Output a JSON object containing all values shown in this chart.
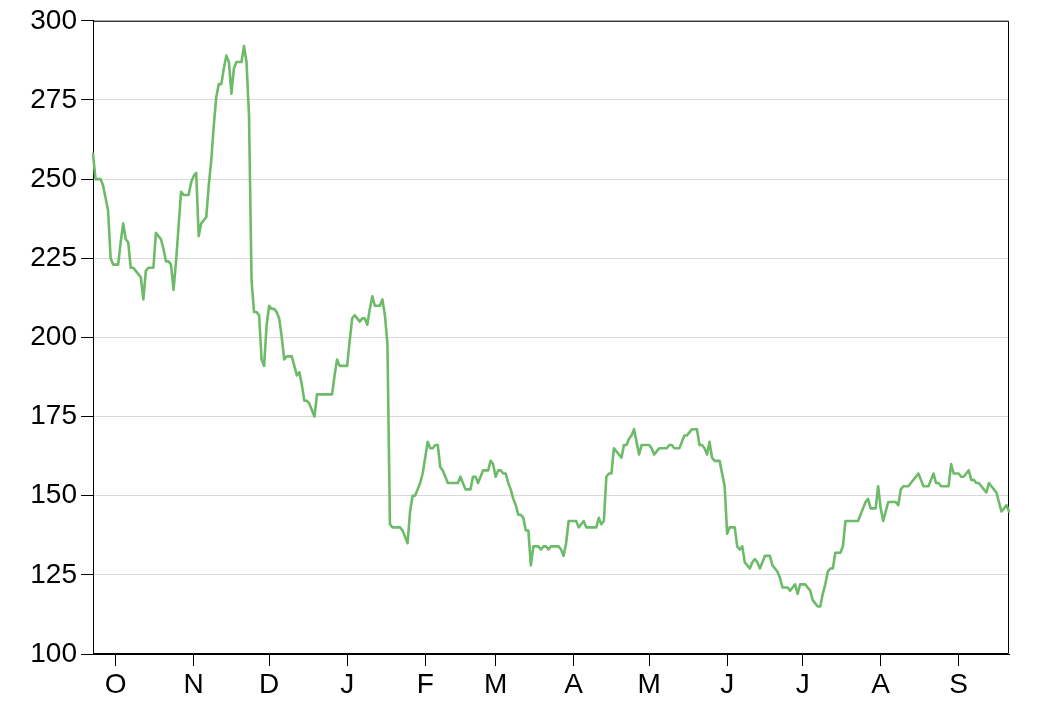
{
  "chart_data": {
    "type": "line",
    "categories": [
      null,
      null,
      null,
      null,
      null,
      null,
      null,
      null,
      null,
      "O",
      null,
      null,
      null,
      null,
      null,
      null,
      null,
      null,
      null,
      null,
      null,
      null,
      null,
      null,
      null,
      null,
      null,
      null,
      null,
      null,
      null,
      null,
      null,
      null,
      null,
      null,
      null,
      null,
      null,
      null,
      "N",
      null,
      null,
      null,
      null,
      null,
      null,
      null,
      null,
      null,
      null,
      null,
      null,
      null,
      null,
      null,
      null,
      null,
      null,
      null,
      null,
      null,
      null,
      null,
      null,
      null,
      null,
      null,
      null,
      null,
      "D",
      null,
      null,
      null,
      null,
      null,
      null,
      null,
      null,
      null,
      null,
      null,
      null,
      null,
      null,
      null,
      null,
      null,
      null,
      null,
      null,
      null,
      null,
      null,
      null,
      null,
      null,
      null,
      null,
      null,
      null,
      "J",
      null,
      null,
      null,
      null,
      null,
      null,
      null,
      null,
      null,
      null,
      null,
      null,
      null,
      null,
      null,
      null,
      null,
      null,
      null,
      null,
      null,
      null,
      null,
      null,
      null,
      null,
      null,
      null,
      null,
      null,
      "F",
      null,
      null,
      null,
      null,
      null,
      null,
      null,
      null,
      null,
      null,
      null,
      null,
      null,
      null,
      null,
      null,
      null,
      null,
      null,
      null,
      null,
      null,
      null,
      null,
      null,
      null,
      null,
      "M",
      null,
      null,
      null,
      null,
      null,
      null,
      null,
      null,
      null,
      null,
      null,
      null,
      null,
      null,
      null,
      null,
      null,
      null,
      null,
      null,
      null,
      null,
      null,
      null,
      null,
      null,
      null,
      null,
      null,
      null,
      "A",
      null,
      null,
      null,
      null,
      null,
      null,
      null,
      null,
      null,
      null,
      null,
      null,
      null,
      null,
      null,
      null,
      null,
      null,
      null,
      null,
      null,
      null,
      null,
      null,
      null,
      null,
      null,
      null,
      null,
      "M",
      null,
      null,
      null,
      null,
      null,
      null,
      null,
      null,
      null,
      null,
      null,
      null,
      null,
      null,
      null,
      null,
      null,
      null,
      null,
      null,
      null,
      null,
      null,
      null,
      null,
      null,
      null,
      null,
      null,
      null,
      "J",
      null,
      null,
      null,
      null,
      null,
      null,
      null,
      null,
      null,
      null,
      null,
      null,
      null,
      null,
      null,
      null,
      null,
      null,
      null,
      null,
      null,
      null,
      null,
      null,
      null,
      null,
      null,
      null,
      null,
      "J",
      null,
      null,
      null,
      null,
      null,
      null,
      null,
      null,
      null,
      null,
      null,
      null,
      null,
      null,
      null,
      null,
      null,
      null,
      null,
      null,
      null,
      null,
      null,
      null,
      null,
      null,
      null,
      null,
      null,
      null,
      "A",
      null,
      null,
      null,
      null,
      null,
      null,
      null,
      null,
      null,
      null,
      null,
      null,
      null,
      null,
      null,
      null,
      null,
      null,
      null,
      null,
      null,
      null,
      null,
      null,
      null,
      null,
      null,
      null,
      null,
      null,
      "S",
      null,
      null,
      null,
      null,
      null,
      null,
      null,
      null,
      null,
      null,
      null,
      null,
      null,
      null,
      null,
      null,
      null,
      null,
      null,
      null
    ],
    "series": [
      {
        "color": "#6dbb68",
        "values": [
          258,
          250,
          250,
          250,
          248,
          244,
          240,
          225,
          223,
          223,
          223,
          230,
          236,
          231,
          230,
          222,
          222,
          221,
          220,
          219,
          212,
          221,
          222,
          222,
          222,
          233,
          232,
          231,
          228,
          224,
          224,
          223,
          215,
          224,
          235,
          246,
          245,
          245,
          245,
          249,
          251,
          252,
          232,
          236,
          237,
          238,
          248,
          256,
          267,
          276,
          280,
          280,
          285,
          289,
          287,
          277,
          285,
          287,
          287,
          287,
          292,
          287,
          270,
          218,
          208,
          208,
          207,
          193,
          191,
          204,
          210,
          209,
          209,
          208,
          206,
          200,
          193,
          194,
          194,
          194,
          191,
          188,
          189,
          185,
          180,
          180,
          179,
          177,
          175,
          182,
          182,
          182,
          182,
          182,
          182,
          182,
          188,
          193,
          191,
          191,
          191,
          191,
          199,
          206,
          207,
          206,
          205,
          206,
          206,
          204,
          209,
          213,
          210,
          210,
          210,
          212,
          207,
          198,
          141,
          140,
          140,
          140,
          140,
          139,
          137,
          135,
          145,
          150,
          150,
          152,
          154,
          157,
          162,
          167,
          165,
          165,
          166,
          166,
          159,
          158,
          156,
          154,
          154,
          154,
          154,
          154,
          156,
          154,
          152,
          152,
          152,
          156,
          156,
          154,
          156,
          158,
          158,
          158,
          161,
          160,
          156,
          158,
          158,
          157,
          157,
          154,
          152,
          149,
          147,
          144,
          144,
          143,
          139,
          139,
          128,
          134,
          134,
          134,
          133,
          134,
          134,
          133,
          134,
          134,
          134,
          134,
          133,
          131,
          135,
          142,
          142,
          142,
          142,
          140,
          141,
          142,
          140,
          140,
          140,
          140,
          140,
          143,
          141,
          142,
          156,
          157,
          157,
          165,
          164,
          163,
          162,
          166,
          166,
          168,
          169,
          171,
          167,
          163,
          166,
          166,
          166,
          166,
          165,
          163,
          164,
          165,
          165,
          165,
          165,
          166,
          166,
          165,
          165,
          165,
          167,
          169,
          169,
          170,
          171,
          171,
          171,
          166,
          166,
          165,
          163,
          167,
          162,
          161,
          161,
          161,
          157,
          153,
          138,
          140,
          140,
          140,
          134,
          133,
          134,
          129,
          128,
          127,
          129,
          130,
          129,
          127,
          129,
          131,
          131,
          131,
          128,
          127,
          126,
          124,
          121,
          121,
          121,
          120,
          121,
          122,
          119,
          122,
          122,
          122,
          121,
          120,
          117,
          116,
          115,
          115,
          119,
          122,
          126,
          127,
          127,
          132,
          132,
          132,
          134,
          142,
          142,
          142,
          142,
          142,
          142,
          144,
          146,
          148,
          149,
          146,
          146,
          146,
          153,
          146,
          142,
          145,
          148,
          148,
          148,
          148,
          147,
          152,
          153,
          153,
          153,
          154,
          155,
          156,
          157,
          155,
          153,
          153,
          153,
          155,
          157,
          154,
          154,
          153,
          153,
          153,
          153,
          160,
          157,
          157,
          157,
          156,
          156,
          157,
          158,
          155,
          155,
          154,
          154,
          153,
          152,
          151,
          154,
          153,
          152,
          151,
          148,
          145,
          146,
          147,
          145
        ]
      }
    ],
    "ylim": [
      100,
      300
    ],
    "yticks": [
      100,
      125,
      150,
      175,
      200,
      225,
      250,
      275,
      300
    ],
    "grid": "y",
    "marker": "none",
    "line_style": "solid"
  }
}
